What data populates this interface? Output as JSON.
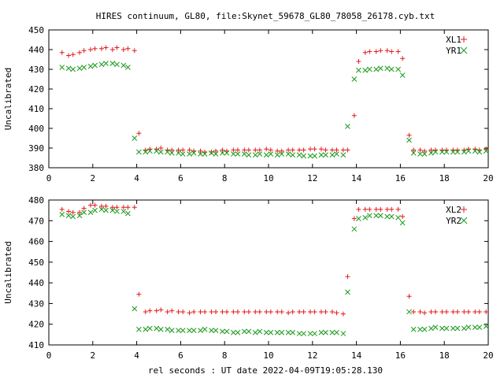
{
  "title": "HIRES continuum, GL80, file:Skynet_59678_GL80_78058_26178.cyb.txt",
  "xlabel": "rel seconds : UT date 2022-04-09T19:05:28.130",
  "colors": {
    "red": "#e41a1c",
    "green": "#1a9a1a",
    "axis": "#000000"
  },
  "chart_data": [
    {
      "type": "scatter",
      "ylabel": "Uncalibrated",
      "xlim": [
        0,
        20
      ],
      "ylim": [
        380,
        450
      ],
      "xticks": [
        0,
        2,
        4,
        6,
        8,
        10,
        12,
        14,
        16,
        18,
        20
      ],
      "yticks": [
        380,
        390,
        400,
        410,
        420,
        430,
        440,
        450
      ],
      "grid": false,
      "legend_position": "top-right",
      "series": [
        {
          "name": "XL1",
          "marker": "plus",
          "color": "#e41a1c",
          "x": [
            0.6,
            0.9,
            1.1,
            1.4,
            1.6,
            1.9,
            2.1,
            2.4,
            2.6,
            2.9,
            3.1,
            3.4,
            3.6,
            3.9,
            4.1,
            4.4,
            4.6,
            4.9,
            5.1,
            5.4,
            5.6,
            5.9,
            6.1,
            6.4,
            6.6,
            6.9,
            7.1,
            7.4,
            7.6,
            7.9,
            8.1,
            8.4,
            8.6,
            8.9,
            9.1,
            9.4,
            9.6,
            9.9,
            10.1,
            10.4,
            10.6,
            10.9,
            11.1,
            11.4,
            11.6,
            11.9,
            12.1,
            12.4,
            12.6,
            12.9,
            13.1,
            13.4,
            13.6,
            13.9,
            14.1,
            14.4,
            14.6,
            14.9,
            15.1,
            15.4,
            15.6,
            15.9,
            16.1,
            16.4,
            16.6,
            16.9,
            17.1,
            17.4,
            17.6,
            17.9,
            18.1,
            18.4,
            18.6,
            18.9,
            19.1,
            19.4,
            19.6,
            19.9
          ],
          "y": [
            438.5,
            437.0,
            437.5,
            438.5,
            439.5,
            440.0,
            440.5,
            440.5,
            441.0,
            440.0,
            441.0,
            440.0,
            440.5,
            439.5,
            397.5,
            389.0,
            389.5,
            389.5,
            390.0,
            389.0,
            389.0,
            389.0,
            389.0,
            389.0,
            388.5,
            388.5,
            388.0,
            388.0,
            388.5,
            389.0,
            388.5,
            389.0,
            389.0,
            389.0,
            389.0,
            389.0,
            389.0,
            389.5,
            389.0,
            388.5,
            388.5,
            389.0,
            389.0,
            389.0,
            389.0,
            389.5,
            389.5,
            389.5,
            389.0,
            389.0,
            389.0,
            389.0,
            389.0,
            406.5,
            434.0,
            438.5,
            439.0,
            439.0,
            439.5,
            439.5,
            439.0,
            439.0,
            435.5,
            396.5,
            389.0,
            389.0,
            388.5,
            389.0,
            389.0,
            389.0,
            389.0,
            389.0,
            389.0,
            389.0,
            389.5,
            389.5,
            389.0,
            389.5
          ]
        },
        {
          "name": "YR1",
          "marker": "cross",
          "color": "#1a9a1a",
          "x": [
            0.6,
            0.9,
            1.1,
            1.4,
            1.6,
            1.9,
            2.1,
            2.4,
            2.6,
            2.9,
            3.1,
            3.4,
            3.6,
            3.9,
            4.1,
            4.4,
            4.6,
            4.9,
            5.1,
            5.4,
            5.6,
            5.9,
            6.1,
            6.4,
            6.6,
            6.9,
            7.1,
            7.4,
            7.6,
            7.9,
            8.1,
            8.4,
            8.6,
            8.9,
            9.1,
            9.4,
            9.6,
            9.9,
            10.1,
            10.4,
            10.6,
            10.9,
            11.1,
            11.4,
            11.6,
            11.9,
            12.1,
            12.4,
            12.6,
            12.9,
            13.1,
            13.4,
            13.6,
            13.9,
            14.1,
            14.4,
            14.6,
            14.9,
            15.1,
            15.4,
            15.6,
            15.9,
            16.1,
            16.4,
            16.6,
            16.9,
            17.1,
            17.4,
            17.6,
            17.9,
            18.1,
            18.4,
            18.6,
            18.9,
            19.1,
            19.4,
            19.6,
            19.9
          ],
          "y": [
            431.0,
            430.5,
            430.0,
            430.5,
            431.0,
            431.5,
            432.0,
            432.5,
            433.0,
            433.0,
            432.5,
            432.0,
            431.0,
            395.0,
            388.0,
            388.0,
            388.5,
            388.5,
            388.0,
            388.0,
            387.5,
            387.5,
            387.0,
            387.0,
            387.5,
            387.0,
            387.0,
            387.5,
            387.0,
            387.5,
            387.5,
            387.0,
            387.0,
            387.0,
            386.5,
            386.5,
            387.0,
            386.5,
            387.0,
            386.5,
            387.0,
            387.0,
            386.5,
            386.5,
            386.0,
            386.0,
            386.0,
            386.5,
            386.5,
            386.5,
            387.0,
            386.5,
            401.0,
            425.0,
            429.5,
            429.5,
            430.0,
            430.0,
            430.5,
            430.5,
            430.0,
            430.0,
            427.0,
            394.0,
            387.5,
            387.0,
            387.0,
            387.5,
            388.0,
            388.0,
            388.0,
            388.0,
            388.0,
            388.0,
            388.5,
            388.5,
            388.0,
            388.5
          ]
        }
      ]
    },
    {
      "type": "scatter",
      "ylabel": "Uncalibrated",
      "xlim": [
        0,
        20
      ],
      "ylim": [
        410,
        480
      ],
      "xticks": [
        0,
        2,
        4,
        6,
        8,
        10,
        12,
        14,
        16,
        18,
        20
      ],
      "yticks": [
        410,
        420,
        430,
        440,
        450,
        460,
        470,
        480
      ],
      "grid": false,
      "legend_position": "top-right",
      "series": [
        {
          "name": "XL2",
          "marker": "plus",
          "color": "#e41a1c",
          "x": [
            0.6,
            0.9,
            1.1,
            1.4,
            1.6,
            1.9,
            2.1,
            2.4,
            2.6,
            2.9,
            3.1,
            3.4,
            3.6,
            3.9,
            4.1,
            4.4,
            4.6,
            4.9,
            5.1,
            5.4,
            5.6,
            5.9,
            6.1,
            6.4,
            6.6,
            6.9,
            7.1,
            7.4,
            7.6,
            7.9,
            8.1,
            8.4,
            8.6,
            8.9,
            9.1,
            9.4,
            9.6,
            9.9,
            10.1,
            10.4,
            10.6,
            10.9,
            11.1,
            11.4,
            11.6,
            11.9,
            12.1,
            12.4,
            12.6,
            12.9,
            13.1,
            13.4,
            13.6,
            13.9,
            14.1,
            14.4,
            14.6,
            14.9,
            15.1,
            15.4,
            15.6,
            15.9,
            16.1,
            16.4,
            16.6,
            16.9,
            17.1,
            17.4,
            17.6,
            17.9,
            18.1,
            18.4,
            18.6,
            18.9,
            19.1,
            19.4,
            19.6,
            19.9
          ],
          "y": [
            475.5,
            474.5,
            474.0,
            474.0,
            476.0,
            477.5,
            477.5,
            477.0,
            477.0,
            476.5,
            476.5,
            476.5,
            476.5,
            476.5,
            434.5,
            426.0,
            426.5,
            426.5,
            427.0,
            426.0,
            426.5,
            426.0,
            426.0,
            425.5,
            426.0,
            426.0,
            426.0,
            426.0,
            426.0,
            426.0,
            426.0,
            426.0,
            426.0,
            426.0,
            426.0,
            426.0,
            426.0,
            426.0,
            426.0,
            426.0,
            426.0,
            425.5,
            426.0,
            426.0,
            426.0,
            426.0,
            426.0,
            426.0,
            426.0,
            426.0,
            425.5,
            425.0,
            443.0,
            471.0,
            475.5,
            475.5,
            475.5,
            475.5,
            475.5,
            475.5,
            475.5,
            475.5,
            472.0,
            433.5,
            426.0,
            426.0,
            425.5,
            426.0,
            426.0,
            426.0,
            426.0,
            426.0,
            426.0,
            426.0,
            426.0,
            426.0,
            426.0,
            426.0
          ]
        },
        {
          "name": "YR2",
          "marker": "cross",
          "color": "#1a9a1a",
          "x": [
            0.6,
            0.9,
            1.1,
            1.4,
            1.6,
            1.9,
            2.1,
            2.4,
            2.6,
            2.9,
            3.1,
            3.4,
            3.6,
            3.9,
            4.1,
            4.4,
            4.6,
            4.9,
            5.1,
            5.4,
            5.6,
            5.9,
            6.1,
            6.4,
            6.6,
            6.9,
            7.1,
            7.4,
            7.6,
            7.9,
            8.1,
            8.4,
            8.6,
            8.9,
            9.1,
            9.4,
            9.6,
            9.9,
            10.1,
            10.4,
            10.6,
            10.9,
            11.1,
            11.4,
            11.6,
            11.9,
            12.1,
            12.4,
            12.6,
            12.9,
            13.1,
            13.4,
            13.6,
            13.9,
            14.1,
            14.4,
            14.6,
            14.9,
            15.1,
            15.4,
            15.6,
            15.9,
            16.1,
            16.4,
            16.6,
            16.9,
            17.1,
            17.4,
            17.6,
            17.9,
            18.1,
            18.4,
            18.6,
            18.9,
            19.1,
            19.4,
            19.6,
            19.9
          ],
          "y": [
            473.0,
            472.5,
            472.0,
            472.5,
            474.0,
            474.0,
            475.0,
            475.5,
            475.0,
            475.0,
            474.5,
            474.5,
            473.5,
            427.5,
            417.5,
            417.5,
            418.0,
            418.0,
            417.5,
            417.5,
            417.0,
            417.0,
            417.0,
            417.0,
            417.0,
            417.0,
            417.5,
            417.0,
            417.0,
            416.5,
            416.5,
            416.0,
            416.0,
            416.5,
            416.5,
            416.0,
            416.5,
            416.0,
            416.0,
            416.0,
            416.0,
            416.0,
            416.0,
            415.5,
            415.5,
            415.5,
            415.5,
            416.0,
            416.0,
            416.0,
            416.0,
            415.5,
            435.5,
            466.0,
            471.0,
            471.5,
            472.5,
            472.5,
            472.5,
            472.0,
            472.0,
            471.5,
            469.0,
            426.0,
            417.5,
            417.5,
            417.5,
            418.0,
            418.5,
            418.0,
            418.0,
            418.0,
            418.0,
            418.0,
            418.5,
            418.5,
            418.5,
            419.0
          ]
        }
      ]
    }
  ]
}
